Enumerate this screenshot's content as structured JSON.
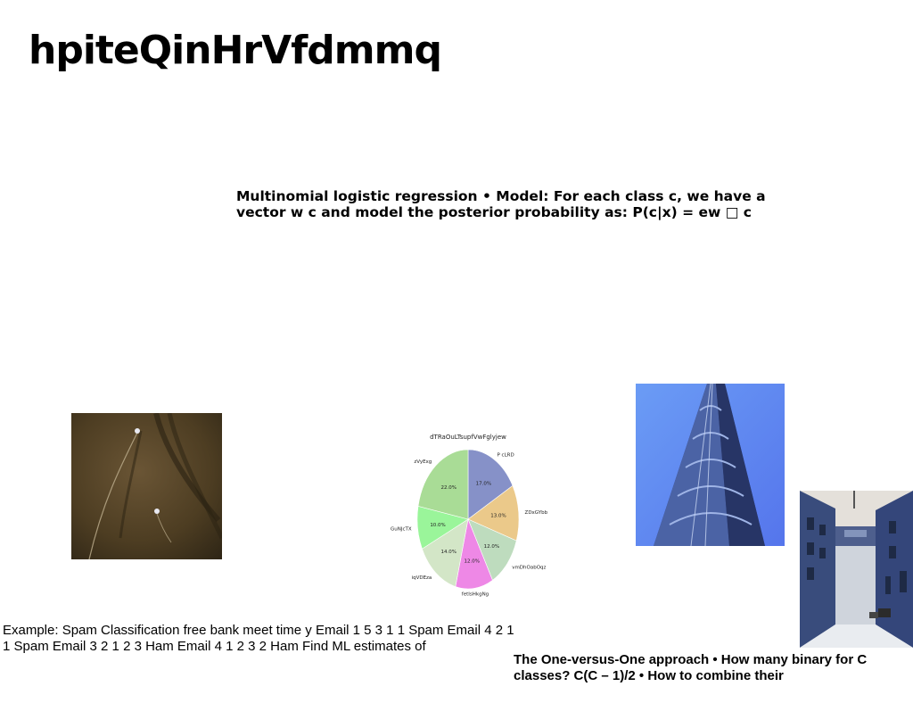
{
  "page": {
    "title": "hpiteQinHrVfdmmq"
  },
  "text_blocks": {
    "block_1": "Multinomial logistic regression • Model: For each class c, we have a vector w c and model the posterior probability as: P(c|x) = ew □ c",
    "block_2": "Example: Spam Classification free bank meet time y Email 1 5 3 1 1 Spam Email 4 2 1 1 Spam Email 3 2 1 2 3 Ham Email 4 1 2 3 2 Ham Find ML estimates of",
    "block_3": "The One-versus-One approach • How many binary for C classes? C(C – 1)/2 • How to combine their"
  },
  "images": {
    "photo_dark": "dark-scratched-surface-photo",
    "photo_tower": "blue-tower-photo",
    "photo_street": "blue-street-photo"
  },
  "chart_data": {
    "type": "pie",
    "title": "dTRaOuLTsupfVwFglyjew",
    "slices": [
      {
        "label": "P cLRD",
        "value": 17.0,
        "pct_label": "17.0%",
        "color": "#8691c8"
      },
      {
        "label": "ZDxGYbb",
        "value": 13.0,
        "pct_label": "13.0%",
        "color": "#ebc98a"
      },
      {
        "label": "vmDhOabOqz",
        "value": 12.0,
        "pct_label": "12.0%",
        "color": "#bedcbe"
      },
      {
        "label": "fetIsHkgNg",
        "value": 12.0,
        "pct_label": "12.0%",
        "color": "#ee88e6"
      },
      {
        "label": "iqVDEza",
        "value": 14.0,
        "pct_label": "14.0%",
        "color": "#d3e6c7"
      },
      {
        "label": "GuNJcTX",
        "value": 10.0,
        "pct_label": "10.0%",
        "color": "#9af59a"
      },
      {
        "label": "zVyExg",
        "value": 22.0,
        "pct_label": "22.0%",
        "color": "#a9dc96"
      }
    ]
  }
}
